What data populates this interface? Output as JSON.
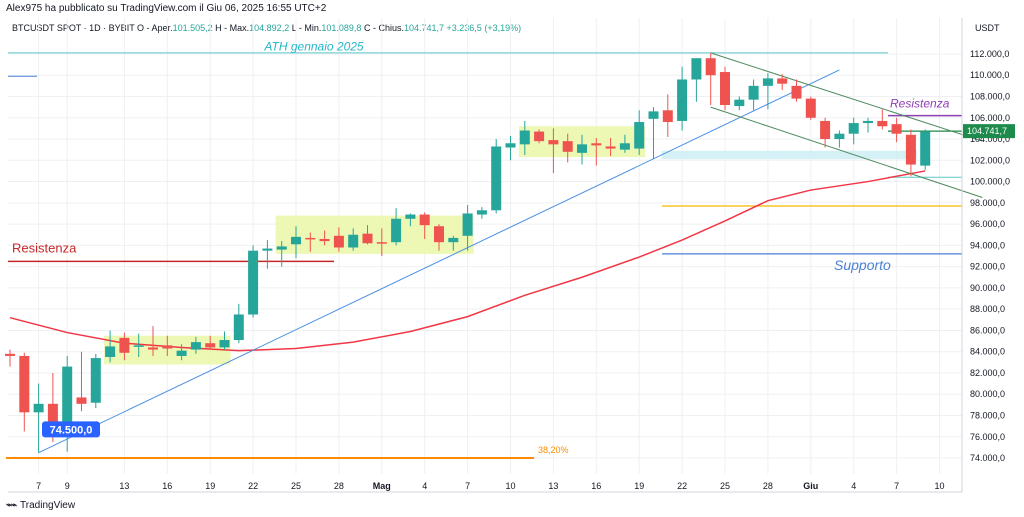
{
  "header": {
    "published_by": "Alex975 ha pubblicato su TradingView.com il Giu 06, 2025 16:55 UTC+2",
    "symbol_line": "BTCUSDT SPOT · 1D · BYBIT",
    "open_label": "O - Aper.",
    "open_value": "101.505,2",
    "high_label": "H - Max.",
    "high_value": "104.892,2",
    "low_label": "L - Min.",
    "low_value": "101.089,8",
    "close_label": "C - Chius.",
    "close_value": "104.741,7",
    "change_value": "+3.236,5 (+3,19%)"
  },
  "footer": {
    "brand": "TradingView"
  },
  "chart_data": {
    "type": "candlestick",
    "currency": "USDT",
    "ylim": [
      72500,
      113500
    ],
    "y_ticks": [
      74000,
      76000,
      78000,
      80000,
      82000,
      84000,
      86000,
      88000,
      90000,
      92000,
      94000,
      96000,
      98000,
      100000,
      102000,
      104000,
      106000,
      108000,
      110000,
      112000
    ],
    "y_tick_labels": [
      "74.000,0",
      "76.000,0",
      "78.000,0",
      "80.000,0",
      "82.000,0",
      "84.000,0",
      "86.000,0",
      "88.000,0",
      "90.000,0",
      "92.000,0",
      "94.000,0",
      "96.000,0",
      "98.000,0",
      "100.000,0",
      "102.000,0",
      "104.000,0",
      "106.000,0",
      "108.000,0",
      "110.000,0",
      "112.000,0"
    ],
    "x_ticks": [
      {
        "i": 2,
        "label": "7"
      },
      {
        "i": 4,
        "label": "9"
      },
      {
        "i": 8,
        "label": "13"
      },
      {
        "i": 11,
        "label": "16"
      },
      {
        "i": 14,
        "label": "19"
      },
      {
        "i": 17,
        "label": "22"
      },
      {
        "i": 20,
        "label": "25"
      },
      {
        "i": 23,
        "label": "28"
      },
      {
        "i": 26,
        "label": "Mag"
      },
      {
        "i": 29,
        "label": "4"
      },
      {
        "i": 32,
        "label": "7"
      },
      {
        "i": 35,
        "label": "10"
      },
      {
        "i": 38,
        "label": "13"
      },
      {
        "i": 41,
        "label": "16"
      },
      {
        "i": 44,
        "label": "19"
      },
      {
        "i": 47,
        "label": "22"
      },
      {
        "i": 50,
        "label": "25"
      },
      {
        "i": 53,
        "label": "28"
      },
      {
        "i": 56,
        "label": "Giu"
      },
      {
        "i": 59,
        "label": "4"
      },
      {
        "i": 62,
        "label": "7"
      },
      {
        "i": 65,
        "label": "10"
      }
    ],
    "candles": [
      {
        "i": 0,
        "o": 83800,
        "h": 84200,
        "l": 82600,
        "c": 83600
      },
      {
        "i": 1,
        "o": 83600,
        "h": 83900,
        "l": 76500,
        "c": 78300
      },
      {
        "i": 2,
        "o": 78300,
        "h": 81000,
        "l": 74500,
        "c": 79100
      },
      {
        "i": 3,
        "o": 79100,
        "h": 82000,
        "l": 75500,
        "c": 76200
      },
      {
        "i": 4,
        "o": 76300,
        "h": 83600,
        "l": 74600,
        "c": 82600
      },
      {
        "i": 5,
        "o": 79700,
        "h": 84000,
        "l": 78400,
        "c": 79100
      },
      {
        "i": 6,
        "o": 79200,
        "h": 83800,
        "l": 78700,
        "c": 83400
      },
      {
        "i": 7,
        "o": 83500,
        "h": 86000,
        "l": 83000,
        "c": 84500
      },
      {
        "i": 8,
        "o": 85300,
        "h": 85800,
        "l": 83200,
        "c": 83900
      },
      {
        "i": 9,
        "o": 84500,
        "h": 85700,
        "l": 83500,
        "c": 84600
      },
      {
        "i": 10,
        "o": 84400,
        "h": 86400,
        "l": 83600,
        "c": 84200
      },
      {
        "i": 11,
        "o": 84600,
        "h": 85500,
        "l": 83600,
        "c": 84300
      },
      {
        "i": 12,
        "o": 83600,
        "h": 84700,
        "l": 83200,
        "c": 84100
      },
      {
        "i": 13,
        "o": 84200,
        "h": 85400,
        "l": 83800,
        "c": 84900
      },
      {
        "i": 14,
        "o": 84800,
        "h": 85500,
        "l": 84200,
        "c": 84400
      },
      {
        "i": 15,
        "o": 84400,
        "h": 85900,
        "l": 84200,
        "c": 85100
      },
      {
        "i": 16,
        "o": 85100,
        "h": 88500,
        "l": 84800,
        "c": 87500
      },
      {
        "i": 17,
        "o": 87500,
        "h": 94000,
        "l": 87200,
        "c": 93500
      },
      {
        "i": 18,
        "o": 93500,
        "h": 94500,
        "l": 91800,
        "c": 93700
      },
      {
        "i": 19,
        "o": 93600,
        "h": 94400,
        "l": 92000,
        "c": 93900
      },
      {
        "i": 20,
        "o": 94100,
        "h": 95800,
        "l": 92800,
        "c": 94800
      },
      {
        "i": 21,
        "o": 94700,
        "h": 95200,
        "l": 93400,
        "c": 94600
      },
      {
        "i": 22,
        "o": 94600,
        "h": 95400,
        "l": 94000,
        "c": 94400
      },
      {
        "i": 23,
        "o": 94900,
        "h": 95700,
        "l": 93400,
        "c": 93800
      },
      {
        "i": 24,
        "o": 93800,
        "h": 95600,
        "l": 93500,
        "c": 95000
      },
      {
        "i": 25,
        "o": 95100,
        "h": 95900,
        "l": 94100,
        "c": 94200
      },
      {
        "i": 26,
        "o": 94300,
        "h": 95600,
        "l": 93000,
        "c": 94200
      },
      {
        "i": 27,
        "o": 94300,
        "h": 97500,
        "l": 94000,
        "c": 96500
      },
      {
        "i": 28,
        "o": 96500,
        "h": 97000,
        "l": 95800,
        "c": 96900
      },
      {
        "i": 29,
        "o": 96900,
        "h": 97100,
        "l": 94600,
        "c": 95900
      },
      {
        "i": 30,
        "o": 95800,
        "h": 96000,
        "l": 93500,
        "c": 94300
      },
      {
        "i": 31,
        "o": 94300,
        "h": 94900,
        "l": 93500,
        "c": 94700
      },
      {
        "i": 32,
        "o": 94900,
        "h": 97800,
        "l": 93500,
        "c": 97000
      },
      {
        "i": 33,
        "o": 96900,
        "h": 97600,
        "l": 96500,
        "c": 97300
      },
      {
        "i": 34,
        "o": 97300,
        "h": 104000,
        "l": 97000,
        "c": 103300
      },
      {
        "i": 35,
        "o": 103200,
        "h": 104300,
        "l": 102000,
        "c": 103600
      },
      {
        "i": 36,
        "o": 103500,
        "h": 105700,
        "l": 102500,
        "c": 104800
      },
      {
        "i": 37,
        "o": 104700,
        "h": 104900,
        "l": 103600,
        "c": 103800
      },
      {
        "i": 38,
        "o": 103900,
        "h": 105000,
        "l": 100800,
        "c": 103500
      },
      {
        "i": 39,
        "o": 103800,
        "h": 104500,
        "l": 101800,
        "c": 102800
      },
      {
        "i": 40,
        "o": 102700,
        "h": 104400,
        "l": 101600,
        "c": 103500
      },
      {
        "i": 41,
        "o": 103600,
        "h": 104100,
        "l": 101500,
        "c": 103400
      },
      {
        "i": 42,
        "o": 103300,
        "h": 104100,
        "l": 102400,
        "c": 103100
      },
      {
        "i": 43,
        "o": 103000,
        "h": 104400,
        "l": 102700,
        "c": 103600
      },
      {
        "i": 44,
        "o": 103100,
        "h": 106700,
        "l": 102500,
        "c": 105600
      },
      {
        "i": 45,
        "o": 105900,
        "h": 107000,
        "l": 102100,
        "c": 106600
      },
      {
        "i": 46,
        "o": 106700,
        "h": 108200,
        "l": 104200,
        "c": 105600
      },
      {
        "i": 47,
        "o": 105700,
        "h": 110800,
        "l": 104800,
        "c": 109600
      },
      {
        "i": 48,
        "o": 109600,
        "h": 111200,
        "l": 107500,
        "c": 111600
      },
      {
        "i": 49,
        "o": 111600,
        "h": 112100,
        "l": 107200,
        "c": 110000
      },
      {
        "i": 50,
        "o": 110300,
        "h": 110800,
        "l": 106700,
        "c": 107200
      },
      {
        "i": 51,
        "o": 107100,
        "h": 108000,
        "l": 106700,
        "c": 107700
      },
      {
        "i": 52,
        "o": 107700,
        "h": 109600,
        "l": 106700,
        "c": 109000
      },
      {
        "i": 53,
        "o": 109000,
        "h": 110200,
        "l": 106800,
        "c": 109700
      },
      {
        "i": 54,
        "o": 109700,
        "h": 110100,
        "l": 108600,
        "c": 109200
      },
      {
        "i": 55,
        "o": 109000,
        "h": 109600,
        "l": 107500,
        "c": 107800
      },
      {
        "i": 56,
        "o": 107800,
        "h": 108000,
        "l": 105800,
        "c": 106000
      },
      {
        "i": 57,
        "o": 105700,
        "h": 106000,
        "l": 103200,
        "c": 104000
      },
      {
        "i": 58,
        "o": 104000,
        "h": 104800,
        "l": 103200,
        "c": 104500
      },
      {
        "i": 59,
        "o": 104500,
        "h": 106000,
        "l": 103500,
        "c": 105500
      },
      {
        "i": 60,
        "o": 105500,
        "h": 106000,
        "l": 104600,
        "c": 105700
      },
      {
        "i": 61,
        "o": 105700,
        "h": 106800,
        "l": 104900,
        "c": 105200
      },
      {
        "i": 62,
        "o": 105400,
        "h": 106000,
        "l": 103700,
        "c": 104500
      },
      {
        "i": 63,
        "o": 104400,
        "h": 104900,
        "l": 100500,
        "c": 101600
      },
      {
        "i": 64,
        "o": 101500,
        "h": 104900,
        "l": 101100,
        "c": 104700
      }
    ],
    "moving_average": {
      "color": "#f23645",
      "points": [
        [
          0,
          87200
        ],
        [
          4,
          85800
        ],
        [
          8,
          84800
        ],
        [
          12,
          84400
        ],
        [
          16,
          84100
        ],
        [
          20,
          84300
        ],
        [
          24,
          84900
        ],
        [
          28,
          85900
        ],
        [
          32,
          87300
        ],
        [
          36,
          89300
        ],
        [
          40,
          91000
        ],
        [
          44,
          92900
        ],
        [
          47,
          94500
        ],
        [
          50,
          96300
        ],
        [
          53,
          98200
        ],
        [
          56,
          99200
        ],
        [
          60,
          100000
        ],
        [
          64,
          101000
        ]
      ]
    },
    "annotations": {
      "ath_label": "ATH gennaio 2025",
      "resistance_left": "Resistenza",
      "resistance_right": "Resistenza",
      "support": "Supporto",
      "start_price": "74.500,0",
      "fib_label": "38,20%",
      "last_price": "104.741,7"
    },
    "levels": {
      "ath": 112100,
      "resistance_left": 92500,
      "resistance_right": 106200,
      "support": 93200,
      "yellow_level": 97700,
      "fib": 74000,
      "fib_top": 100400
    },
    "zones": [
      {
        "i0": 7,
        "i1": 15,
        "ylo": 82800,
        "yhi": 85500,
        "color": "#e9f7a6"
      },
      {
        "i0": 19,
        "i1": 32,
        "ylo": 93200,
        "yhi": 96800,
        "color": "#e9f7a6"
      },
      {
        "i0": 36,
        "i1": 44,
        "ylo": 102300,
        "yhi": 105200,
        "color": "#e9f7a6"
      },
      {
        "i0": 46,
        "i1": 63,
        "ylo": 102100,
        "yhi": 102900,
        "color": "#cfeef5"
      }
    ],
    "trendline": {
      "i0": 2,
      "y0": 74500,
      "i1": 58,
      "y1": 110500,
      "color": "#4a90e2"
    },
    "channel": {
      "upper": [
        [
          49,
          112100
        ],
        [
          68,
          103800
        ]
      ],
      "lower": [
        [
          49,
          107000
        ],
        [
          68,
          98500
        ]
      ],
      "color": "#4c8a5e"
    },
    "colors": {
      "up": "#26a69a",
      "down": "#ef5350",
      "grid": "#eef0f3",
      "axis_text": "#131722",
      "support": "#4a7fd6",
      "resistance_left": "#c62828",
      "resistance_right": "#8e3fb3",
      "ath_line": "#5bc8c8",
      "ath_text": "#26b5c8",
      "yellow": "#f5b800",
      "fib": "#ff8c00"
    }
  }
}
